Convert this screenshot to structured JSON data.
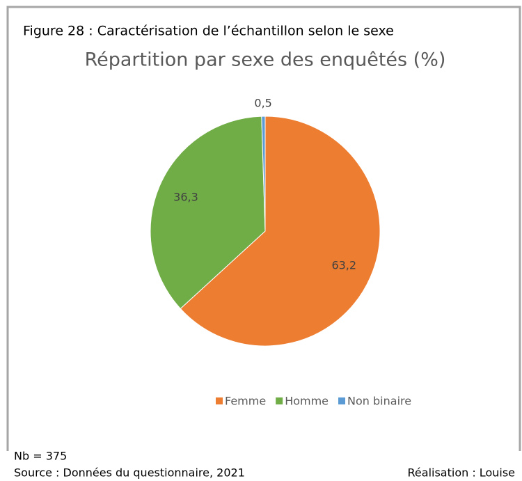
{
  "figure_caption": "Figure 28 : Caractérisation de l’échantillon selon le sexe",
  "chart_data": {
    "type": "pie",
    "title": "Répartition par sexe des enquêtés (%)",
    "categories": [
      "Femme",
      "Homme",
      "Non binaire"
    ],
    "values": [
      63.2,
      36.3,
      0.5
    ],
    "value_labels": [
      "63,2",
      "36,3",
      "0,5"
    ],
    "colors": [
      "#ed7d31",
      "#70ad47",
      "#5b9bd5"
    ],
    "legend": "bottom"
  },
  "note": "Nb = 375",
  "source": "Source : Données du questionnaire, 2021",
  "credit": "Réalisation : Louise"
}
